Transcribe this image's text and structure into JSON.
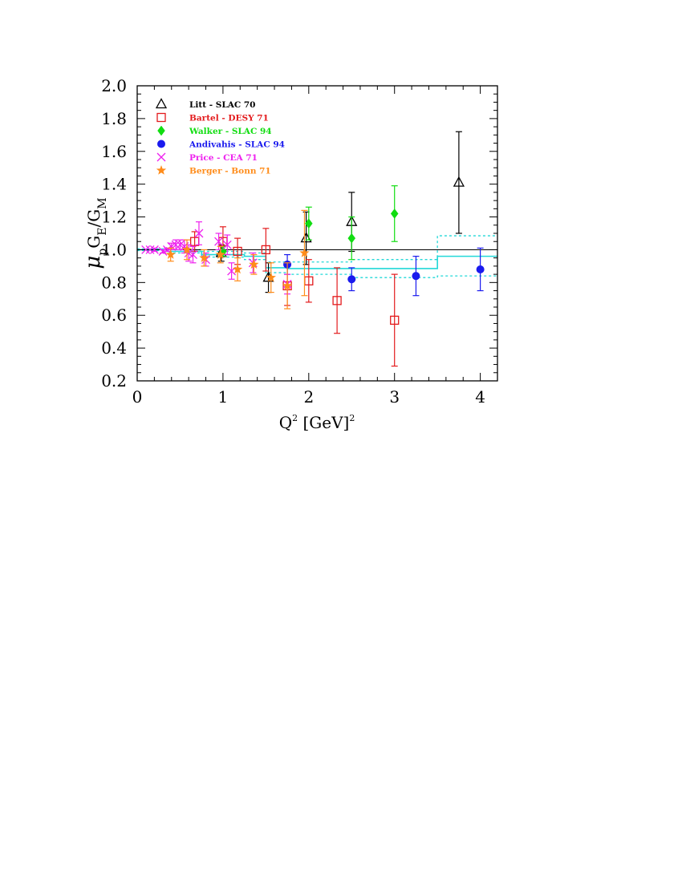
{
  "chart_data": {
    "type": "scatter",
    "title": "",
    "xlabel": "Q² [GeV]²",
    "ylabel": "μpGE/GM",
    "ylabel_parts": {
      "mu": "μ",
      "p": "p",
      "GE": "G",
      "E": "E",
      "slash": "/",
      "GM": "G",
      "M": "M"
    },
    "xlabel_parts": {
      "Q": "Q",
      "sup": "2",
      "rest": " [GeV]",
      "sup2": "2"
    },
    "xlim": [
      0,
      4.2
    ],
    "ylim": [
      0.2,
      2.0
    ],
    "xticks": [
      0,
      1,
      2,
      3,
      4
    ],
    "xtick_labels": [
      "0",
      "1",
      "2",
      "3",
      "4"
    ],
    "yticks": [
      0.2,
      0.4,
      0.6,
      0.8,
      1.0,
      1.2,
      1.4,
      1.6,
      1.8,
      2.0
    ],
    "ytick_labels": [
      "0.2",
      "0.4",
      "0.6",
      "0.8",
      "1.0",
      "1.2",
      "1.4",
      "1.6",
      "1.8",
      "2.0"
    ],
    "grid": false,
    "legend_position": "top-left",
    "reference_line": {
      "y": 1.0,
      "color": "#000000"
    },
    "series": [
      {
        "name": "Litt - SLAC 70",
        "marker": "open-triangle",
        "color": "#000000",
        "points": [
          {
            "x": 0.98,
            "y": 0.98,
            "err": 0.05
          },
          {
            "x": 1.53,
            "y": 0.83,
            "err": 0.09
          },
          {
            "x": 1.97,
            "y": 1.07,
            "err": 0.16
          },
          {
            "x": 2.5,
            "y": 1.17,
            "err": 0.18
          },
          {
            "x": 3.75,
            "y": 1.41,
            "err": 0.31
          }
        ]
      },
      {
        "name": "Bartel - DESY 71",
        "marker": "open-square",
        "color": "#e31a1c",
        "points": [
          {
            "x": 0.67,
            "y": 1.05,
            "err": 0.06
          },
          {
            "x": 1.0,
            "y": 1.05,
            "err": 0.09
          },
          {
            "x": 1.17,
            "y": 0.99,
            "err": 0.08
          },
          {
            "x": 1.5,
            "y": 1.0,
            "err": 0.13
          },
          {
            "x": 1.75,
            "y": 0.78,
            "err": 0.12
          },
          {
            "x": 2.0,
            "y": 0.81,
            "err": 0.13
          },
          {
            "x": 2.33,
            "y": 0.69,
            "err": 0.2
          },
          {
            "x": 3.0,
            "y": 0.57,
            "err": 0.28
          }
        ]
      },
      {
        "name": "Walker - SLAC 94",
        "marker": "filled-diamond",
        "color": "#11dd11",
        "points": [
          {
            "x": 1.0,
            "y": 0.99,
            "err": 0.03
          },
          {
            "x": 2.0,
            "y": 1.16,
            "err": 0.1
          },
          {
            "x": 2.5,
            "y": 1.07,
            "err": 0.13
          },
          {
            "x": 3.0,
            "y": 1.22,
            "err": 0.17
          }
        ]
      },
      {
        "name": "Andivahis - SLAC 94",
        "marker": "filled-circle",
        "color": "#1a1aee",
        "points": [
          {
            "x": 1.75,
            "y": 0.91,
            "err": 0.06
          },
          {
            "x": 2.5,
            "y": 0.82,
            "err": 0.07
          },
          {
            "x": 3.25,
            "y": 0.84,
            "err": 0.12
          },
          {
            "x": 4.0,
            "y": 0.88,
            "err": 0.13
          }
        ]
      },
      {
        "name": "Price - CEA 71",
        "marker": "cross",
        "color": "#ee22ee",
        "points": [
          {
            "x": 0.1,
            "y": 1.0,
            "err": 0.0
          },
          {
            "x": 0.15,
            "y": 1.0,
            "err": 0.0
          },
          {
            "x": 0.2,
            "y": 1.0,
            "err": 0.01
          },
          {
            "x": 0.3,
            "y": 0.99,
            "err": 0.01
          },
          {
            "x": 0.35,
            "y": 1.0,
            "err": 0.01
          },
          {
            "x": 0.4,
            "y": 1.02,
            "err": 0.02
          },
          {
            "x": 0.45,
            "y": 1.03,
            "err": 0.03
          },
          {
            "x": 0.5,
            "y": 1.03,
            "err": 0.03
          },
          {
            "x": 0.55,
            "y": 1.02,
            "err": 0.04
          },
          {
            "x": 0.6,
            "y": 0.98,
            "err": 0.05
          },
          {
            "x": 0.65,
            "y": 0.97,
            "err": 0.05
          },
          {
            "x": 0.72,
            "y": 1.1,
            "err": 0.07
          },
          {
            "x": 0.8,
            "y": 0.94,
            "err": 0.04
          },
          {
            "x": 0.95,
            "y": 1.05,
            "err": 0.05
          },
          {
            "x": 1.05,
            "y": 1.03,
            "err": 0.06
          },
          {
            "x": 1.1,
            "y": 0.87,
            "err": 0.05
          },
          {
            "x": 1.35,
            "y": 0.92,
            "err": 0.06
          },
          {
            "x": 1.75,
            "y": 0.79,
            "err": 0.06
          }
        ]
      },
      {
        "name": "Berger - Bonn 71",
        "marker": "filled-star",
        "color": "#ff8c1a",
        "points": [
          {
            "x": 0.39,
            "y": 0.97,
            "err": 0.04
          },
          {
            "x": 0.58,
            "y": 1.0,
            "err": 0.06
          },
          {
            "x": 0.78,
            "y": 0.95,
            "err": 0.05
          },
          {
            "x": 0.97,
            "y": 0.97,
            "err": 0.05
          },
          {
            "x": 1.17,
            "y": 0.88,
            "err": 0.07
          },
          {
            "x": 1.36,
            "y": 0.91,
            "err": 0.06
          },
          {
            "x": 1.56,
            "y": 0.83,
            "err": 0.09
          },
          {
            "x": 1.75,
            "y": 0.78,
            "err": 0.14
          },
          {
            "x": 1.95,
            "y": 0.98,
            "err": 0.26
          }
        ]
      }
    ],
    "fit_band": {
      "color": "#22d8d8",
      "central": [
        {
          "x_from": 0.0,
          "x_to": 0.35,
          "y": 1.0
        },
        {
          "x_from": 0.35,
          "x_to": 0.75,
          "y": 0.99
        },
        {
          "x_from": 0.75,
          "x_to": 1.25,
          "y": 0.97
        },
        {
          "x_from": 1.25,
          "x_to": 1.5,
          "y": 0.96
        },
        {
          "x_from": 1.5,
          "x_to": 1.75,
          "y": 0.89
        },
        {
          "x_from": 1.75,
          "x_to": 3.5,
          "y": 0.885
        },
        {
          "x_from": 3.5,
          "x_to": 4.2,
          "y": 0.96
        }
      ],
      "upper": [
        {
          "x_from": 0.0,
          "x_to": 0.35,
          "y": 1.005
        },
        {
          "x_from": 0.35,
          "x_to": 0.75,
          "y": 1.0
        },
        {
          "x_from": 0.75,
          "x_to": 1.25,
          "y": 0.99
        },
        {
          "x_from": 1.25,
          "x_to": 1.5,
          "y": 0.98
        },
        {
          "x_from": 1.5,
          "x_to": 1.75,
          "y": 0.925
        },
        {
          "x_from": 1.75,
          "x_to": 2.5,
          "y": 0.925
        },
        {
          "x_from": 2.5,
          "x_to": 3.5,
          "y": 0.94
        },
        {
          "x_from": 3.5,
          "x_to": 4.2,
          "y": 1.085
        }
      ],
      "lower": [
        {
          "x_from": 0.0,
          "x_to": 0.35,
          "y": 0.995
        },
        {
          "x_from": 0.35,
          "x_to": 0.75,
          "y": 0.98
        },
        {
          "x_from": 0.75,
          "x_to": 1.25,
          "y": 0.955
        },
        {
          "x_from": 1.25,
          "x_to": 1.5,
          "y": 0.94
        },
        {
          "x_from": 1.5,
          "x_to": 1.75,
          "y": 0.86
        },
        {
          "x_from": 1.75,
          "x_to": 2.5,
          "y": 0.85
        },
        {
          "x_from": 2.5,
          "x_to": 3.5,
          "y": 0.83
        },
        {
          "x_from": 3.5,
          "x_to": 4.2,
          "y": 0.84
        }
      ]
    }
  }
}
